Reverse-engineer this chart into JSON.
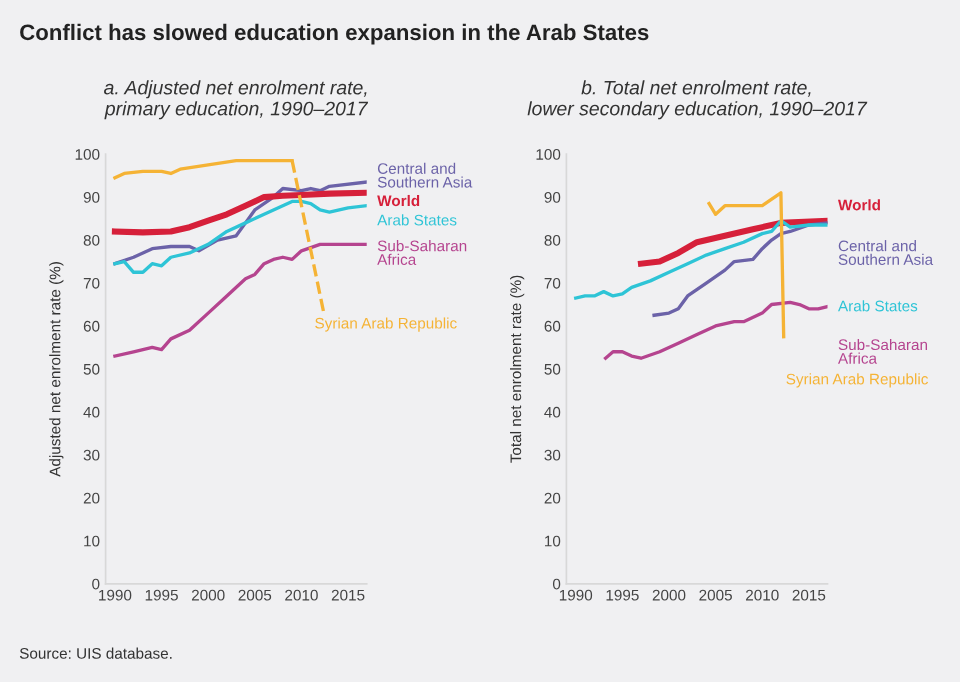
{
  "chart_data": [
    {
      "type": "line",
      "title": "Conflict has slowed education expansion in the Arab States",
      "subtitle": "a. Adjusted net enrolment rate,\nprimary education, 1990–2017",
      "ylabel": "Adjusted net enrolment rate (%)",
      "annotations": [
        "Source: UIS database."
      ],
      "xlim": [
        1989,
        2017
      ],
      "ylim": [
        0,
        100
      ],
      "xticks": [
        1990,
        1995,
        2000,
        2005,
        2010,
        2015
      ],
      "yticks": [
        0,
        10,
        20,
        30,
        40,
        50,
        60,
        70,
        80,
        90,
        100
      ],
      "grid": false,
      "legend": false,
      "marker": "none",
      "series": [
        {
          "name": "Central and\nSouthern Asia",
          "color": "#6b62a8",
          "x": [
            1990,
            1992,
            1994,
            1996,
            1998,
            1999,
            2001,
            2003,
            2004,
            2005,
            2007,
            2008,
            2010,
            2011,
            2012,
            2013,
            2017
          ],
          "values": [
            74.5,
            76,
            78,
            78.5,
            78.5,
            77.5,
            80,
            81,
            84,
            87,
            90,
            92,
            91.5,
            92,
            91.5,
            92.5,
            93.5
          ]
        },
        {
          "name": "World",
          "color": "#d6203a",
          "x": [
            1990,
            1993,
            1996,
            1998,
            2000,
            2002,
            2004,
            2006,
            2008,
            2010,
            2013,
            2017
          ],
          "values": [
            82,
            81.8,
            82,
            83,
            84.5,
            86,
            88,
            90,
            90.3,
            90.5,
            90.8,
            91
          ]
        },
        {
          "name": "Arab States",
          "color": "#2ec4d6",
          "x": [
            1990,
            1991,
            1992,
            1993,
            1994,
            1995,
            1996,
            1998,
            2000,
            2002,
            2004,
            2006,
            2008,
            2009,
            2010,
            2011,
            2012,
            2013,
            2015,
            2017
          ],
          "values": [
            74.5,
            75,
            72.5,
            72.5,
            74.5,
            74,
            76,
            77,
            79,
            82,
            84,
            86,
            88,
            89,
            89,
            88.5,
            87,
            86.5,
            87.5,
            88
          ]
        },
        {
          "name": "Sub-Saharan\nAfrica",
          "color": "#b5448f",
          "x": [
            1990,
            1992,
            1994,
            1995,
            1996,
            1998,
            2000,
            2002,
            2004,
            2005,
            2006,
            2007,
            2008,
            2009,
            2010,
            2012,
            2015,
            2017
          ],
          "values": [
            53,
            54,
            55,
            54.5,
            57,
            59,
            63,
            67,
            71,
            72,
            74.5,
            75.5,
            76,
            75.5,
            77.5,
            79,
            79,
            79
          ]
        },
        {
          "name": "Syrian Arab Republic",
          "color": "#f5b335",
          "line_style": "solid",
          "x": [
            1990,
            1991,
            1993,
            1995,
            1996,
            1997,
            2000,
            2003,
            2006,
            2009
          ],
          "values": [
            94.5,
            95.5,
            96,
            96,
            95.5,
            96.5,
            97.5,
            98.5,
            98.5,
            98.5
          ]
        },
        {
          "color": "#f5b335",
          "line_style": "dashed",
          "x": [
            2009,
            2012.4
          ],
          "values": [
            98.5,
            63
          ]
        }
      ]
    },
    {
      "type": "line",
      "subtitle": "b. Total net enrolment rate,\nlower secondary education, 1990–2017",
      "ylabel": "Total net enrolment rate (%)",
      "xlim": [
        1989,
        2017
      ],
      "ylim": [
        0,
        100
      ],
      "xticks": [
        1990,
        1995,
        2000,
        2005,
        2010,
        2015
      ],
      "yticks": [
        0,
        10,
        20,
        30,
        40,
        50,
        60,
        70,
        80,
        90,
        100
      ],
      "grid": false,
      "legend": false,
      "marker": "none",
      "series": [
        {
          "name": "World",
          "color": "#d6203a",
          "x": [
            1997,
            1999,
            2001,
            2003,
            2006,
            2009,
            2012,
            2017
          ],
          "values": [
            74.5,
            75,
            77,
            79.5,
            81,
            82.5,
            84,
            84.5
          ]
        },
        {
          "name": "Central and\nSouthern Asia",
          "color": "#6b62a8",
          "x": [
            1998.4,
            2000,
            2001,
            2002,
            2004,
            2006,
            2007,
            2009,
            2010,
            2011,
            2012,
            2013,
            2015,
            2017
          ],
          "values": [
            62.5,
            63,
            64,
            67,
            70,
            73,
            75,
            75.5,
            78,
            80,
            81.5,
            82,
            83.5,
            84
          ]
        },
        {
          "name": "Arab States",
          "color": "#2ec4d6",
          "x": [
            1990,
            1991,
            1992,
            1993,
            1994,
            1995,
            1996,
            1998,
            2000,
            2002,
            2004,
            2006,
            2008,
            2010,
            2011,
            2012,
            2013,
            2015,
            2017
          ],
          "values": [
            66.5,
            67,
            67,
            68,
            67,
            67.5,
            69,
            70.5,
            72.5,
            74.5,
            76.5,
            78,
            79.5,
            81.5,
            82,
            84.5,
            83,
            83.5,
            83.5
          ]
        },
        {
          "name": "Sub-Saharan\nAfrica",
          "color": "#b5448f",
          "x": [
            1993.2,
            1994,
            1995,
            1996,
            1997,
            1999,
            2001,
            2003,
            2005,
            2007,
            2008,
            2010,
            2011,
            2013,
            2014,
            2015,
            2016,
            2017
          ],
          "values": [
            52.5,
            54,
            54,
            53,
            52.5,
            54,
            56,
            58,
            60,
            61,
            61,
            63,
            65,
            65.5,
            65,
            64,
            64,
            64.5
          ]
        },
        {
          "name": "Syrian Arab Republic",
          "color": "#f5b335",
          "line_style": "solid",
          "x": [
            2004.3,
            2005,
            2006,
            2008,
            2010,
            2012,
            2012.3
          ],
          "values": [
            88.5,
            86,
            88,
            88,
            88,
            91,
            57.5
          ]
        }
      ]
    }
  ]
}
